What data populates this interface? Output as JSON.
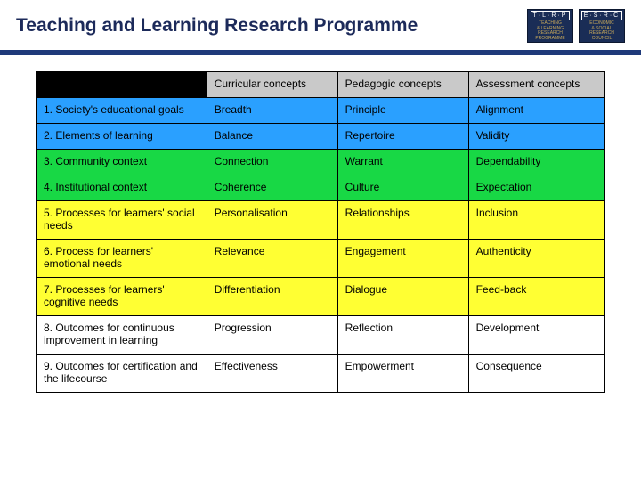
{
  "header": {
    "title": "Teaching and Learning Research Programme",
    "logos": [
      {
        "acronym": "T·L·R·P",
        "line1": "TEACHING",
        "line2": "& LEARNING",
        "line3": "RESEARCH",
        "line4": "PROGRAMME"
      },
      {
        "acronym": "E·S·R·C",
        "line1": "ECONOMIC",
        "line2": "& SOCIAL",
        "line3": "RESEARCH",
        "line4": "COUNCIL"
      }
    ]
  },
  "table": {
    "type": "table",
    "header_bg": "#c9c9c9",
    "blank_header_bg": "#000000",
    "border_color": "#000000",
    "font_size_pt": 12,
    "columns": [
      "",
      "Curricular concepts",
      "Pedagogic concepts",
      "Assessment concepts"
    ],
    "column_widths_pct": [
      30,
      23,
      23,
      24
    ],
    "row_colors": {
      "blue": "#2aa0ff",
      "green": "#18d845",
      "yellow": "#ffff33",
      "white": "#ffffff"
    },
    "rows": [
      {
        "color": "blue",
        "cells": [
          "1. Society's educational goals",
          "Breadth",
          "Principle",
          "Alignment"
        ]
      },
      {
        "color": "blue",
        "cells": [
          "2. Elements of learning",
          "Balance",
          "Repertoire",
          "Validity"
        ]
      },
      {
        "color": "green",
        "cells": [
          "3. Community context",
          "Connection",
          "Warrant",
          "Dependability"
        ]
      },
      {
        "color": "green",
        "cells": [
          "4. Institutional context",
          "Coherence",
          "Culture",
          "Expectation"
        ]
      },
      {
        "color": "yellow",
        "cells": [
          "5. Processes for learners' social needs",
          "Personalisation",
          "Relationships",
          "Inclusion"
        ]
      },
      {
        "color": "yellow",
        "cells": [
          "6. Process for learners' emotional needs",
          "Relevance",
          "Engagement",
          "Authenticity"
        ]
      },
      {
        "color": "yellow",
        "cells": [
          "7. Processes for learners' cognitive needs",
          "Differentiation",
          "Dialogue",
          "Feed-back"
        ]
      },
      {
        "color": "white",
        "cells": [
          "8. Outcomes for continuous improvement in learning",
          "Progression",
          "Reflection",
          "Development"
        ]
      },
      {
        "color": "white",
        "cells": [
          "9. Outcomes for certification and the lifecourse",
          "Effectiveness",
          "Empowerment",
          "Consequence"
        ]
      }
    ]
  }
}
